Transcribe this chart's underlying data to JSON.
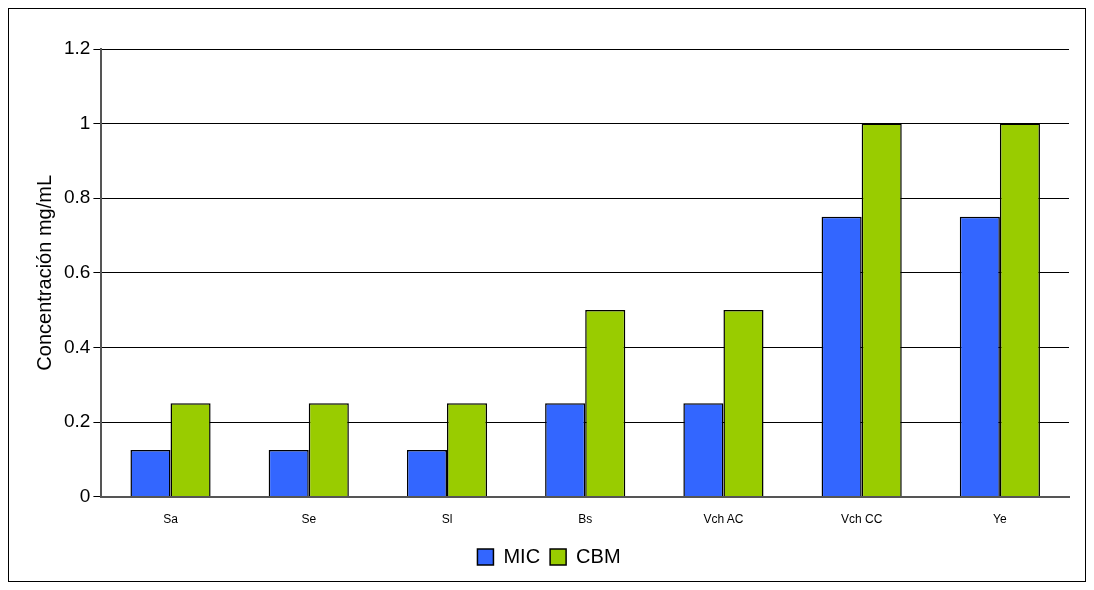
{
  "chart_data": {
    "type": "bar",
    "ylabel": "Concentración mg/mL",
    "categories": [
      "Sa",
      "Se",
      "Sl",
      "Bs",
      "Vch AC",
      "Vch CC",
      "Ye"
    ],
    "series": [
      {
        "name": "MIC",
        "color": "#3366ff",
        "values": [
          0.125,
          0.125,
          0.125,
          0.25,
          0.25,
          0.75,
          0.75
        ]
      },
      {
        "name": "CBM",
        "color": "#99cc00",
        "values": [
          0.25,
          0.25,
          0.25,
          0.5,
          0.5,
          1,
          1
        ]
      }
    ],
    "ylim": [
      0,
      1.2
    ],
    "yticks": [
      0,
      0.2,
      0.4,
      0.6,
      0.8,
      1,
      1.2
    ],
    "grid": "y",
    "legend": "bottom"
  }
}
